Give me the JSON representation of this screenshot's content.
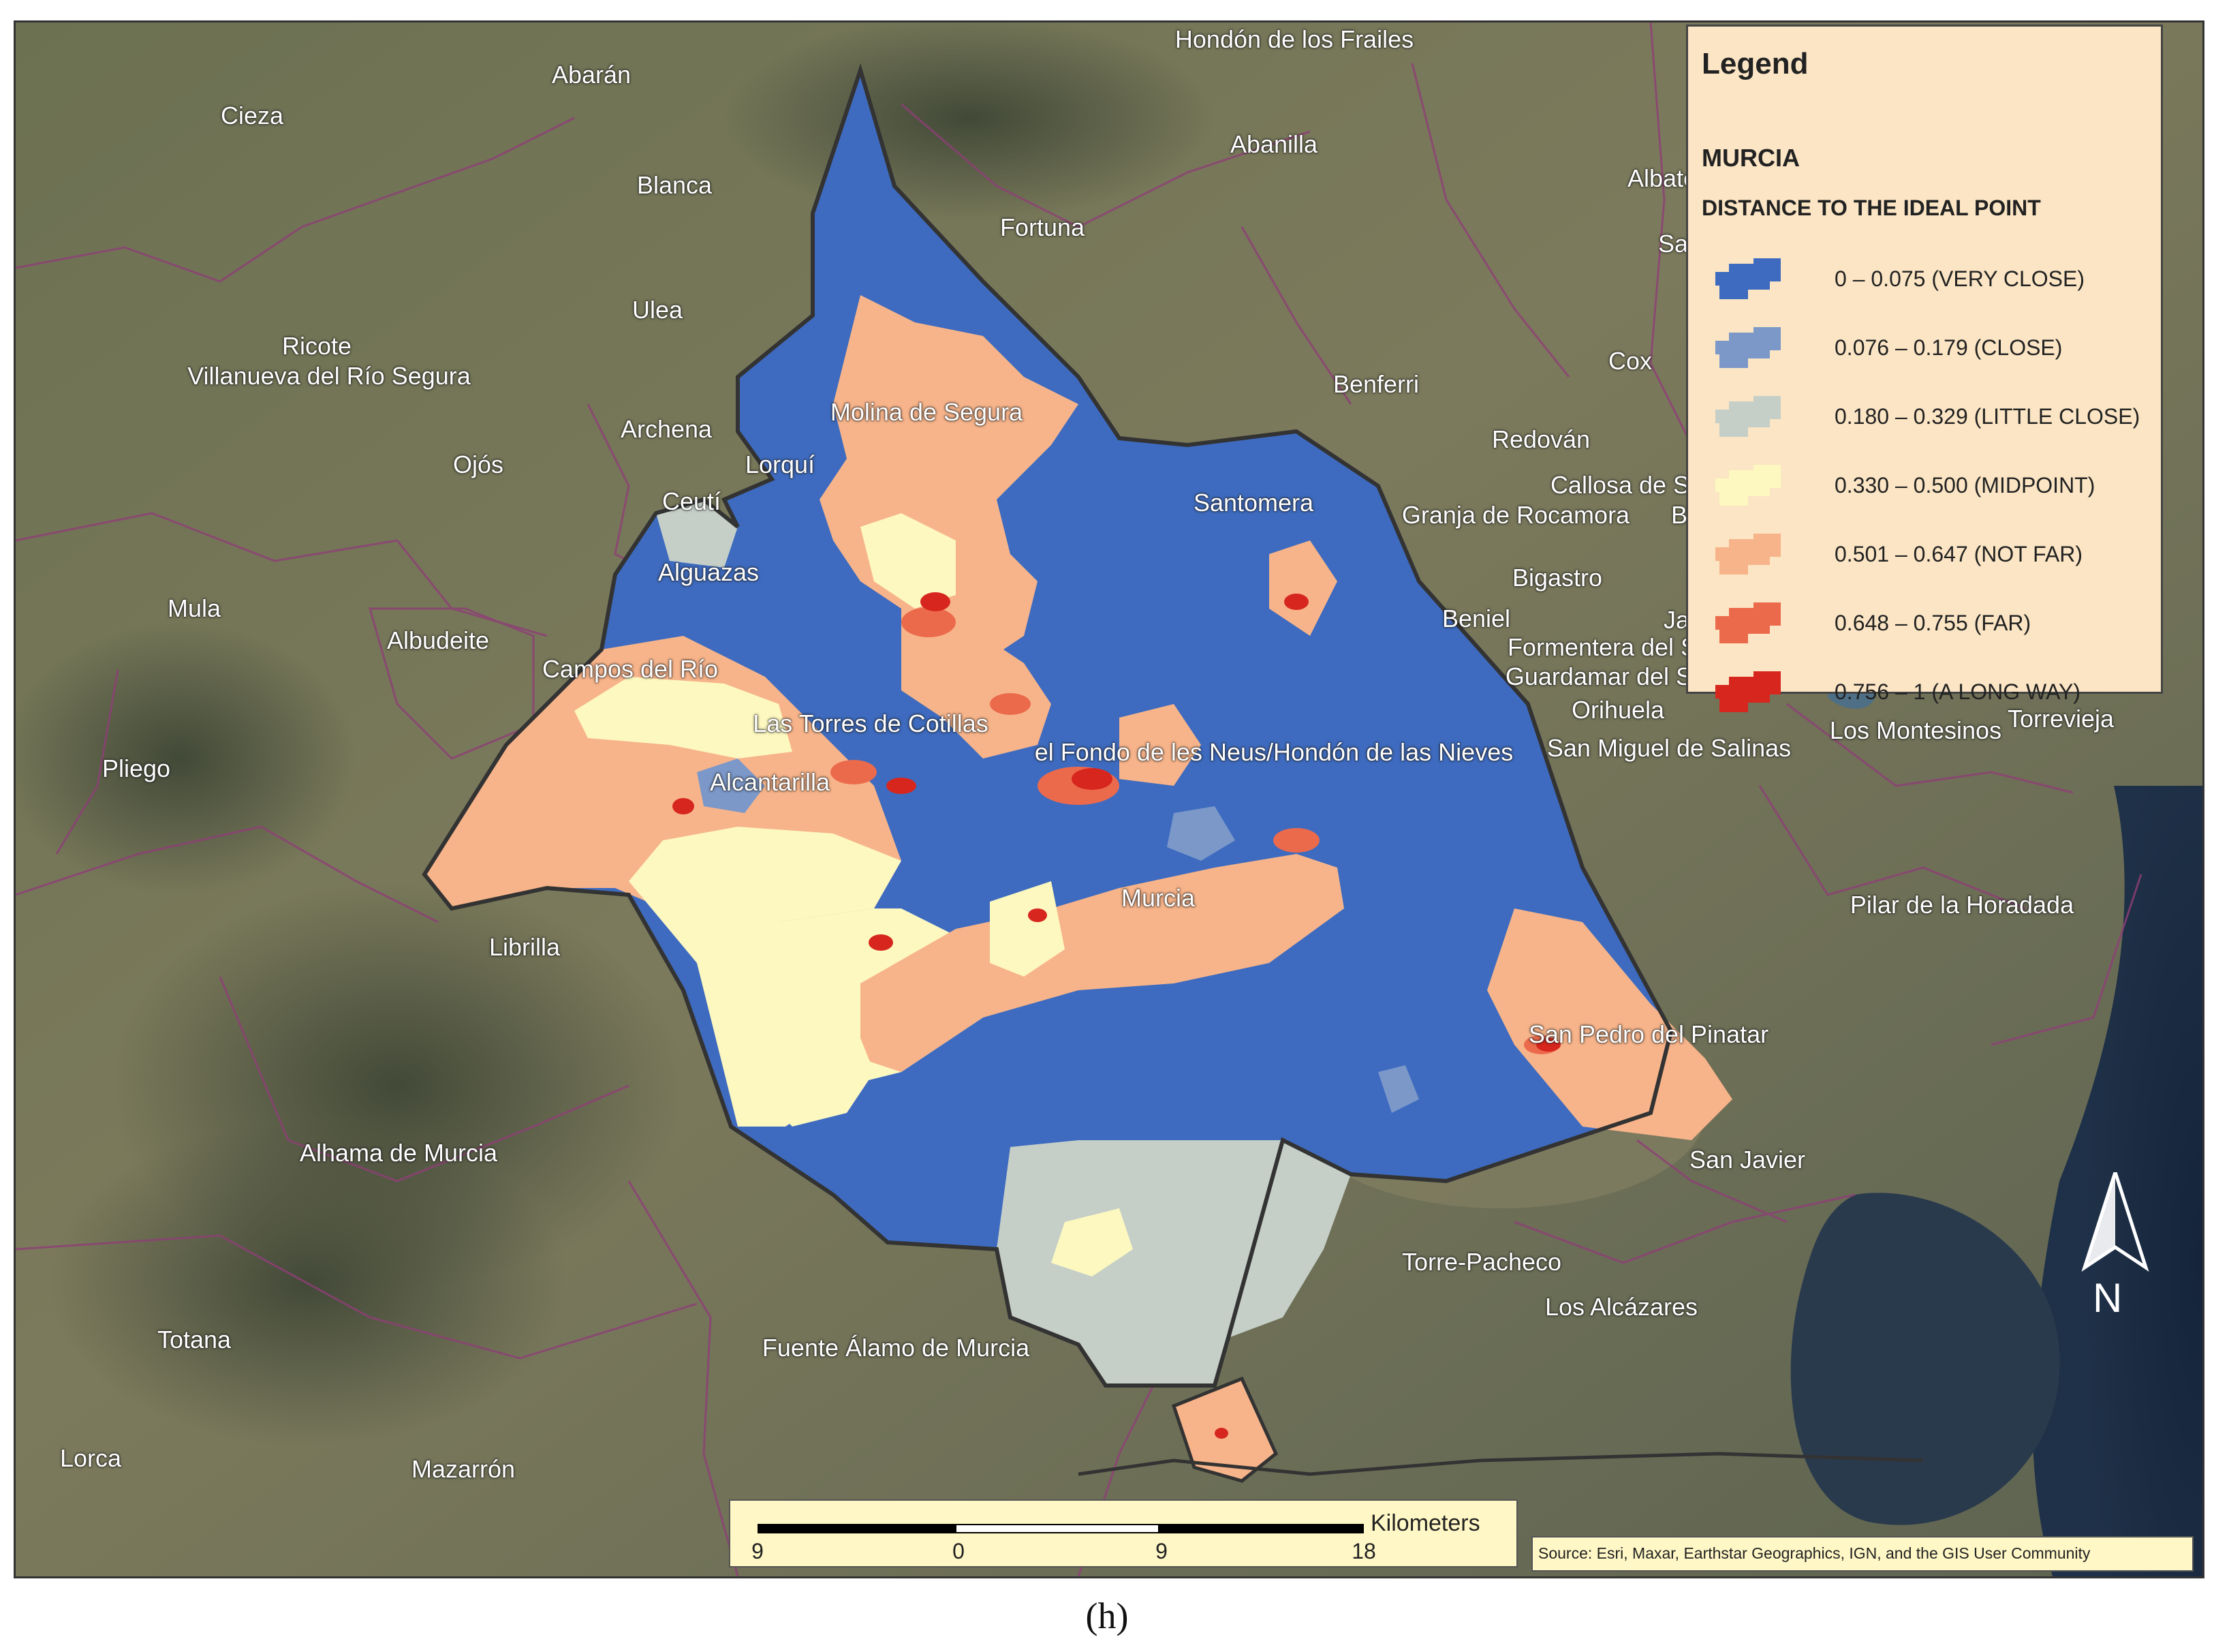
{
  "map": {
    "basemap": "satellite imagery",
    "places": [
      {
        "name": "Hondón de los Frailes",
        "pos": [
          1900,
          58
        ]
      },
      {
        "name": "Abarán",
        "pos": [
          868,
          110
        ]
      },
      {
        "name": "Cieza",
        "pos": [
          370,
          170
        ]
      },
      {
        "name": "Abanilla",
        "pos": [
          1870,
          212
        ]
      },
      {
        "name": "Blanca",
        "pos": [
          990,
          272
        ]
      },
      {
        "name": "Fortuna",
        "pos": [
          1530,
          334
        ]
      },
      {
        "name": "Albate",
        "pos": [
          2440,
          262
        ]
      },
      {
        "name": "San",
        "pos": [
          2466,
          358
        ]
      },
      {
        "name": "Ulea",
        "pos": [
          965,
          455
        ]
      },
      {
        "name": "Ricote",
        "pos": [
          465,
          508
        ]
      },
      {
        "name": "Villanueva del Río Segura",
        "pos": [
          483,
          552
        ]
      },
      {
        "name": "Cox",
        "pos": [
          2393,
          530
        ]
      },
      {
        "name": "Benferri",
        "pos": [
          2020,
          564
        ]
      },
      {
        "name": "Molina de Segura",
        "pos": [
          1360,
          605
        ]
      },
      {
        "name": "Archena",
        "pos": [
          978,
          630
        ]
      },
      {
        "name": "Redován",
        "pos": [
          2262,
          645
        ]
      },
      {
        "name": "Ojós",
        "pos": [
          702,
          682
        ]
      },
      {
        "name": "Lorquí",
        "pos": [
          1145,
          682
        ]
      },
      {
        "name": "Callosa de S",
        "pos": [
          2378,
          712
        ]
      },
      {
        "name": "Ceutí",
        "pos": [
          1015,
          736
        ]
      },
      {
        "name": "Santomera",
        "pos": [
          1840,
          738
        ]
      },
      {
        "name": "Granja de Rocamora",
        "pos": [
          2225,
          756
        ]
      },
      {
        "name": "Be",
        "pos": [
          2475,
          756
        ]
      },
      {
        "name": "Alguazas",
        "pos": [
          1040,
          840
        ]
      },
      {
        "name": "Bigastro",
        "pos": [
          2286,
          848
        ]
      },
      {
        "name": "Mula",
        "pos": [
          285,
          893
        ]
      },
      {
        "name": "Beniel",
        "pos": [
          2167,
          908
        ]
      },
      {
        "name": "Jac",
        "pos": [
          2470,
          910
        ]
      },
      {
        "name": "Albudeite",
        "pos": [
          643,
          940
        ]
      },
      {
        "name": "Formentera del S",
        "pos": [
          2352,
          950
        ]
      },
      {
        "name": "Campos del Río",
        "pos": [
          925,
          982
        ]
      },
      {
        "name": "Guardamar del Segura",
        "pos": [
          2393,
          993
        ]
      },
      {
        "name": "Orihuela",
        "pos": [
          2375,
          1042
        ]
      },
      {
        "name": "Torrevieja",
        "pos": [
          3025,
          1055
        ]
      },
      {
        "name": "Las Torres de Cotillas",
        "pos": [
          1278,
          1062
        ]
      },
      {
        "name": "Los Montesinos",
        "pos": [
          2812,
          1072
        ]
      },
      {
        "name": "San Miguel de Salinas",
        "pos": [
          2450,
          1098
        ]
      },
      {
        "name": "el Fondo de les Neus/Hondón de las Nieves",
        "pos": [
          1870,
          1104
        ]
      },
      {
        "name": "Pliego",
        "pos": [
          200,
          1128
        ]
      },
      {
        "name": "Alcantarilla",
        "pos": [
          1130,
          1148
        ]
      },
      {
        "name": "Murcia",
        "pos": [
          1700,
          1318
        ]
      },
      {
        "name": "Pilar de la Horadada",
        "pos": [
          2880,
          1328
        ]
      },
      {
        "name": "Librilla",
        "pos": [
          770,
          1390
        ]
      },
      {
        "name": "San Pedro del Pinatar",
        "pos": [
          2420,
          1518
        ]
      },
      {
        "name": "Alhama de Murcia",
        "pos": [
          585,
          1692
        ]
      },
      {
        "name": "San Javier",
        "pos": [
          2565,
          1702
        ]
      },
      {
        "name": "Torre-Pacheco",
        "pos": [
          2175,
          1852
        ]
      },
      {
        "name": "Los Alcázares",
        "pos": [
          2380,
          1918
        ]
      },
      {
        "name": "Totana",
        "pos": [
          285,
          1966
        ]
      },
      {
        "name": "Fuente Álamo de Murcia",
        "pos": [
          1315,
          1978
        ]
      },
      {
        "name": "Lorca",
        "pos": [
          133,
          2140
        ]
      },
      {
        "name": "Mazarrón",
        "pos": [
          680,
          2156
        ]
      }
    ]
  },
  "legend": {
    "title": "Legend",
    "layer": "MURCIA",
    "field": "DISTANCE TO THE IDEAL POINT",
    "classes": [
      {
        "label": "0 – 0.075 (VERY CLOSE)",
        "color": "#3e6bbf"
      },
      {
        "label": "0.076 – 0.179 (CLOSE)",
        "color": "#7b98c9"
      },
      {
        "label": "0.180 – 0.329 (LITTLE CLOSE)",
        "color": "#c5cfc8"
      },
      {
        "label": "0.330 – 0.500 (MIDPOINT)",
        "color": "#fdf8c0"
      },
      {
        "label": "0.501 – 0.647 (NOT FAR)",
        "color": "#f7b48a"
      },
      {
        "label": "0.648 – 0.755 (FAR)",
        "color": "#ec6a4c"
      },
      {
        "label": "0.756 – 1 (A LONG WAY)",
        "color": "#d7261e"
      }
    ]
  },
  "scalebar": {
    "unit": "Kilometers",
    "ticks": [
      "9",
      "0",
      "9",
      "18"
    ]
  },
  "source": "Source: Esri, Maxar, Earthstar Geographics, IGN, and the GIS User Community",
  "north_arrow": "N",
  "caption": "(h)"
}
